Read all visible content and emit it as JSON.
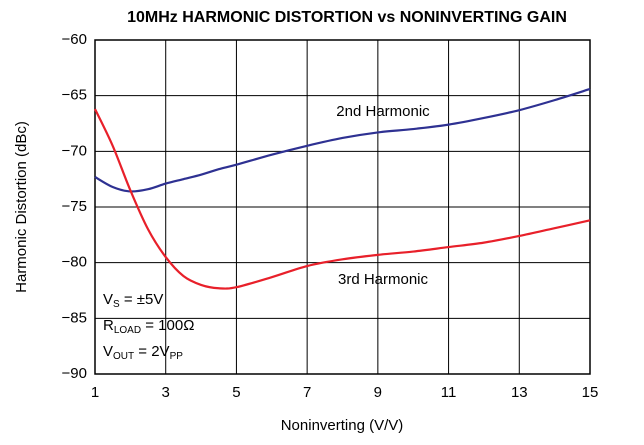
{
  "chart_data": {
    "type": "line",
    "title": "10MHz HARMONIC DISTORTION vs NONINVERTING GAIN",
    "x_label": "Noninverting (V/V)",
    "y_label": "Harmonic Distortion (dBc)",
    "x": [
      1,
      1.5,
      2,
      2.5,
      3,
      3.5,
      4,
      4.5,
      5,
      6,
      7,
      8,
      9,
      10,
      11,
      12,
      13,
      14,
      15
    ],
    "series": [
      {
        "name": "2nd Harmonic",
        "color": "#2e3192",
        "values": [
          -72.3,
          -73.2,
          -73.6,
          -73.4,
          -72.9,
          -72.5,
          -72.1,
          -71.6,
          -71.2,
          -70.3,
          -69.5,
          -68.8,
          -68.3,
          -68.0,
          -67.6,
          -67.0,
          -66.3,
          -65.4,
          -64.4
        ]
      },
      {
        "name": "3rd Harmonic",
        "color": "#e8202a",
        "values": [
          -66.2,
          -69.5,
          -73.5,
          -77.0,
          -79.5,
          -81.2,
          -82.0,
          -82.3,
          -82.2,
          -81.3,
          -80.3,
          -79.7,
          -79.3,
          -79.0,
          -78.6,
          -78.2,
          -77.6,
          -76.9,
          -76.2
        ]
      }
    ],
    "xlim": [
      1,
      15
    ],
    "ylim": [
      -90,
      -60
    ],
    "xticks": [
      1,
      3,
      5,
      7,
      9,
      11,
      13,
      15
    ],
    "yticks": [
      {
        "value": -90,
        "label": "−90"
      },
      {
        "value": -85,
        "label": "−85"
      },
      {
        "value": -80,
        "label": "−80"
      },
      {
        "value": -75,
        "label": "−75"
      },
      {
        "value": -70,
        "label": "−70"
      },
      {
        "value": -65,
        "label": "−65"
      },
      {
        "value": -60,
        "label": "−60"
      }
    ],
    "grid": true,
    "conditions": [
      [
        {
          "text": "V"
        },
        {
          "sub": "S"
        },
        {
          "text": " = ±5V"
        }
      ],
      [
        {
          "text": "R"
        },
        {
          "sub": "LOAD"
        },
        {
          "text": " = 100Ω"
        }
      ],
      [
        {
          "text": "V"
        },
        {
          "sub": "OUT"
        },
        {
          "text": " = 2V"
        },
        {
          "sub": "PP"
        }
      ]
    ]
  }
}
